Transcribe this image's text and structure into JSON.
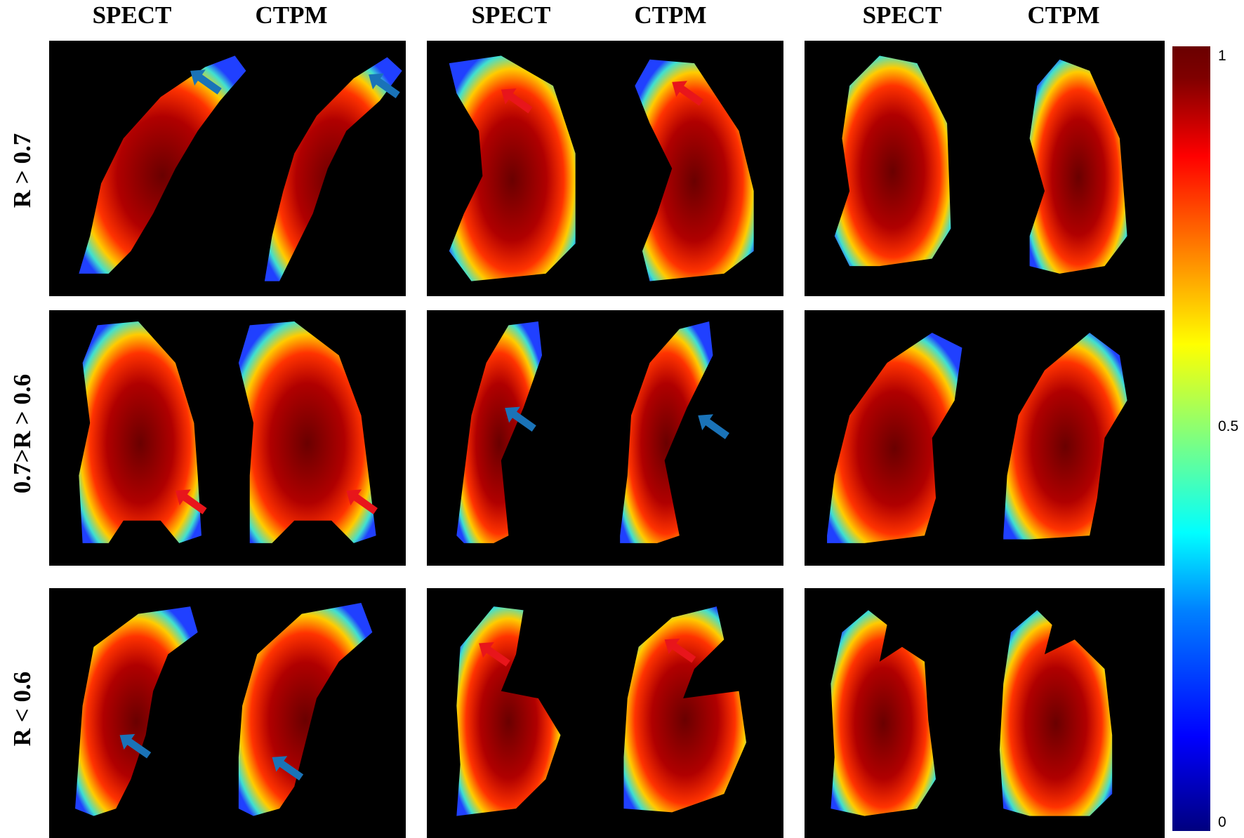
{
  "column_headers": [
    "SPECT",
    "CTPM",
    "SPECT",
    "CTPM",
    "SPECT",
    "CTPM"
  ],
  "row_labels": [
    "R > 0.7",
    "0.7>R > 0.6",
    "R < 0.6"
  ],
  "colorbar": {
    "colormap": "jet",
    "ticks": [
      "1",
      "0.5",
      "0"
    ]
  },
  "colors": {
    "background": "#ffffff",
    "panel": "#000000",
    "arrow_red": "#e8151b",
    "arrow_blue": "#1a73b8"
  },
  "panels": [
    {
      "row": 0,
      "col": 0,
      "arrows": [
        "blue",
        "blue"
      ]
    },
    {
      "row": 0,
      "col": 1,
      "arrows": [
        "red",
        "red"
      ]
    },
    {
      "row": 0,
      "col": 2,
      "arrows": []
    },
    {
      "row": 1,
      "col": 0,
      "arrows": [
        "red",
        "red"
      ]
    },
    {
      "row": 1,
      "col": 1,
      "arrows": [
        "blue",
        "blue"
      ]
    },
    {
      "row": 1,
      "col": 2,
      "arrows": []
    },
    {
      "row": 2,
      "col": 0,
      "arrows": [
        "blue",
        "blue"
      ]
    },
    {
      "row": 2,
      "col": 1,
      "arrows": [
        "red",
        "red"
      ]
    },
    {
      "row": 2,
      "col": 2,
      "arrows": []
    }
  ]
}
